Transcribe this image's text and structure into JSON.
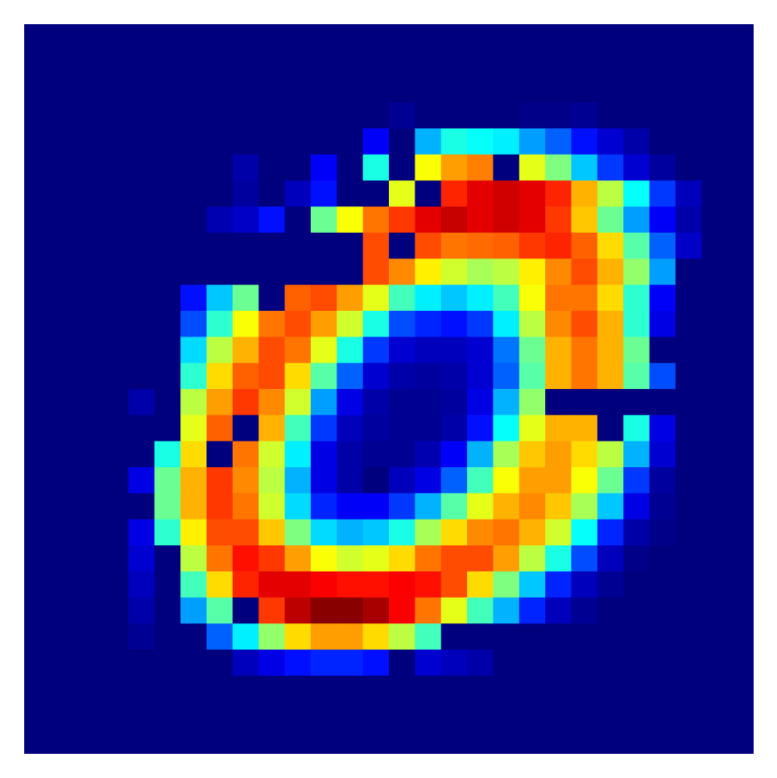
{
  "chart_data": {
    "type": "heatmap",
    "title": "",
    "xlabel": "",
    "ylabel": "",
    "colormap": "jet",
    "colormap_stops": [
      "#00007f",
      "#0000ff",
      "#007fff",
      "#00ffff",
      "#7fff7f",
      "#ffff00",
      "#ff7f00",
      "#ff0000",
      "#7f0000"
    ],
    "vmin": 0,
    "vmax": 1,
    "rows": 28,
    "cols": 28,
    "axes_visible": false,
    "grid": false,
    "values": [
      [
        0,
        0,
        0,
        0,
        0,
        0,
        0,
        0,
        0,
        0,
        0,
        0,
        0,
        0,
        0,
        0,
        0,
        0,
        0,
        0,
        0,
        0,
        0,
        0,
        0,
        0,
        0,
        0
      ],
      [
        0,
        0,
        0,
        0,
        0,
        0,
        0,
        0,
        0,
        0,
        0,
        0,
        0,
        0,
        0,
        0,
        0,
        0,
        0,
        0,
        0,
        0,
        0,
        0,
        0,
        0,
        0,
        0
      ],
      [
        0,
        0,
        0,
        0,
        0,
        0,
        0,
        0,
        0,
        0,
        0,
        0,
        0,
        0,
        0,
        0,
        0,
        0,
        0,
        0,
        0,
        0,
        0,
        0,
        0,
        0,
        0,
        0
      ],
      [
        0,
        0,
        0,
        0,
        0,
        0,
        0,
        0,
        0,
        0,
        0,
        0,
        0,
        0,
        0.02,
        0,
        0,
        0,
        0,
        0.01,
        0.01,
        0.02,
        0,
        0,
        0,
        0,
        0,
        0
      ],
      [
        0,
        0,
        0,
        0,
        0,
        0,
        0,
        0,
        0,
        0,
        0,
        0,
        0,
        0.12,
        0,
        0.3,
        0.4,
        0.38,
        0.36,
        0.28,
        0.22,
        0.14,
        0.08,
        0.04,
        0,
        0,
        0,
        0
      ],
      [
        0,
        0,
        0,
        0,
        0,
        0,
        0,
        0,
        0.04,
        0,
        0,
        0.12,
        0,
        0.4,
        0,
        0.62,
        0.72,
        0.75,
        0,
        0.6,
        0.5,
        0.32,
        0.18,
        0.08,
        0.03,
        0,
        0,
        0
      ],
      [
        0,
        0,
        0,
        0,
        0,
        0,
        0,
        0,
        0.03,
        0,
        0.06,
        0.14,
        0,
        0,
        0.6,
        0,
        0.84,
        0.9,
        0.92,
        0.9,
        0.84,
        0.7,
        0.56,
        0.38,
        0.18,
        0.06,
        0,
        0
      ],
      [
        0,
        0,
        0,
        0,
        0,
        0,
        0,
        0.05,
        0.07,
        0.14,
        0,
        0.48,
        0.62,
        0.76,
        0.82,
        0.9,
        0.93,
        0.9,
        0.92,
        0.9,
        0.82,
        0.68,
        0.48,
        0.28,
        0.12,
        0.04,
        0,
        0
      ],
      [
        0,
        0,
        0,
        0,
        0,
        0,
        0,
        0,
        0,
        0,
        0,
        0,
        0,
        0.8,
        0,
        0.8,
        0.76,
        0.77,
        0.78,
        0.82,
        0.84,
        0.78,
        0.66,
        0.46,
        0.22,
        0.07,
        0,
        0
      ],
      [
        0,
        0,
        0,
        0,
        0,
        0,
        0,
        0,
        0,
        0,
        0,
        0,
        0,
        0.8,
        0.74,
        0.64,
        0.58,
        0.54,
        0.56,
        0.64,
        0.74,
        0.8,
        0.7,
        0.52,
        0.28,
        0,
        0,
        0
      ],
      [
        0,
        0,
        0,
        0,
        0,
        0,
        0.14,
        0.32,
        0.48,
        0,
        0.78,
        0.8,
        0.72,
        0.6,
        0.44,
        0.36,
        0.32,
        0.36,
        0.44,
        0.62,
        0.76,
        0.76,
        0.66,
        0.42,
        0.12,
        0,
        0,
        0
      ],
      [
        0,
        0,
        0,
        0,
        0,
        0,
        0.2,
        0.42,
        0.62,
        0.76,
        0.8,
        0.72,
        0.58,
        0.4,
        0.2,
        0.16,
        0.14,
        0.18,
        0.36,
        0.56,
        0.74,
        0.8,
        0.7,
        0.42,
        0.1,
        0,
        0,
        0
      ],
      [
        0,
        0,
        0,
        0,
        0,
        0,
        0.34,
        0.56,
        0.7,
        0.8,
        0.76,
        0.6,
        0.4,
        0.18,
        0.08,
        0.06,
        0.06,
        0.08,
        0.24,
        0.48,
        0.7,
        0.76,
        0.7,
        0.48,
        0,
        0,
        0,
        0
      ],
      [
        0,
        0,
        0,
        0,
        0,
        0,
        0.42,
        0.66,
        0.78,
        0.8,
        0.66,
        0.46,
        0.22,
        0.08,
        0.04,
        0.03,
        0.04,
        0.08,
        0.22,
        0.46,
        0.7,
        0.76,
        0.7,
        0.46,
        0.2,
        0,
        0,
        0
      ],
      [
        0,
        0,
        0,
        0,
        0.04,
        0,
        0.56,
        0.72,
        0.82,
        0.74,
        0.58,
        0.28,
        0.1,
        0.04,
        0.02,
        0.02,
        0.03,
        0.1,
        0.3,
        0.52,
        0,
        0,
        0,
        0,
        0,
        0,
        0,
        0
      ],
      [
        0,
        0,
        0,
        0,
        0,
        0,
        0.6,
        0.78,
        0,
        0.7,
        0.44,
        0.18,
        0.06,
        0.03,
        0.02,
        0.02,
        0.04,
        0.14,
        0.38,
        0.6,
        0.7,
        0.7,
        0,
        0.4,
        0.1,
        0,
        0,
        0
      ],
      [
        0,
        0,
        0,
        0,
        0,
        0.4,
        0.66,
        0,
        0.76,
        0.58,
        0.36,
        0.1,
        0.04,
        0.02,
        0.02,
        0.05,
        0.12,
        0.3,
        0.54,
        0.68,
        0.72,
        0.66,
        0.56,
        0.3,
        0.08,
        0,
        0,
        0
      ],
      [
        0,
        0,
        0,
        0,
        0.1,
        0.48,
        0.7,
        0.82,
        0.74,
        0.56,
        0.3,
        0.1,
        0.04,
        0,
        0.06,
        0.1,
        0.22,
        0.44,
        0.62,
        0.72,
        0.72,
        0.62,
        0.48,
        0.18,
        0.03,
        0,
        0,
        0
      ],
      [
        0,
        0,
        0,
        0,
        0,
        0.48,
        0.7,
        0.82,
        0.76,
        0.58,
        0.34,
        0.16,
        0.12,
        0.12,
        0.18,
        0.3,
        0.46,
        0.6,
        0.7,
        0.74,
        0.68,
        0.54,
        0.32,
        0.1,
        0.02,
        0,
        0,
        0
      ],
      [
        0,
        0,
        0,
        0,
        0.1,
        0.42,
        0.64,
        0.8,
        0.8,
        0.68,
        0.5,
        0.34,
        0.3,
        0.32,
        0.4,
        0.54,
        0.66,
        0.74,
        0.76,
        0.7,
        0.58,
        0.38,
        0.16,
        0.04,
        0.01,
        0,
        0,
        0
      ],
      [
        0,
        0,
        0,
        0,
        0.08,
        0,
        0.56,
        0.76,
        0.86,
        0.82,
        0.72,
        0.62,
        0.58,
        0.6,
        0.66,
        0.76,
        0.8,
        0.8,
        0.72,
        0.56,
        0.4,
        0.2,
        0.06,
        0.01,
        0,
        0,
        0,
        0
      ],
      [
        0,
        0,
        0,
        0,
        0.06,
        0,
        0.44,
        0.66,
        0.84,
        0.9,
        0.9,
        0.88,
        0.86,
        0.86,
        0.88,
        0.86,
        0.8,
        0.66,
        0.5,
        0.32,
        0.16,
        0.06,
        0.02,
        0,
        0,
        0,
        0,
        0
      ],
      [
        0,
        0,
        0,
        0,
        0.04,
        0,
        0.28,
        0.46,
        0,
        0.82,
        0.94,
        0.99,
        0.99,
        0.96,
        0.88,
        0.76,
        0.6,
        0.44,
        0.3,
        0.16,
        0.06,
        0.02,
        0,
        0,
        0,
        0,
        0,
        0
      ],
      [
        0,
        0,
        0,
        0,
        0.02,
        0,
        0,
        0.22,
        0.36,
        0.52,
        0.66,
        0.72,
        0.72,
        0.66,
        0.56,
        0.44,
        0,
        0,
        0,
        0,
        0,
        0,
        0,
        0,
        0,
        0,
        0,
        0
      ],
      [
        0,
        0,
        0,
        0,
        0,
        0,
        0,
        0,
        0.06,
        0.1,
        0.14,
        0.16,
        0.16,
        0.14,
        0,
        0.08,
        0.06,
        0.04,
        0,
        0,
        0,
        0,
        0,
        0,
        0,
        0,
        0,
        0
      ],
      [
        0,
        0,
        0,
        0,
        0,
        0,
        0,
        0,
        0,
        0,
        0,
        0,
        0,
        0,
        0,
        0,
        0,
        0,
        0,
        0,
        0,
        0,
        0,
        0,
        0,
        0,
        0,
        0
      ],
      [
        0,
        0,
        0,
        0,
        0,
        0,
        0,
        0,
        0,
        0,
        0,
        0,
        0,
        0,
        0,
        0,
        0,
        0,
        0,
        0,
        0,
        0,
        0,
        0,
        0,
        0,
        0,
        0
      ],
      [
        0,
        0,
        0,
        0,
        0,
        0,
        0,
        0,
        0,
        0,
        0,
        0,
        0,
        0,
        0,
        0,
        0,
        0,
        0,
        0,
        0,
        0,
        0,
        0,
        0,
        0,
        0,
        0
      ]
    ]
  }
}
